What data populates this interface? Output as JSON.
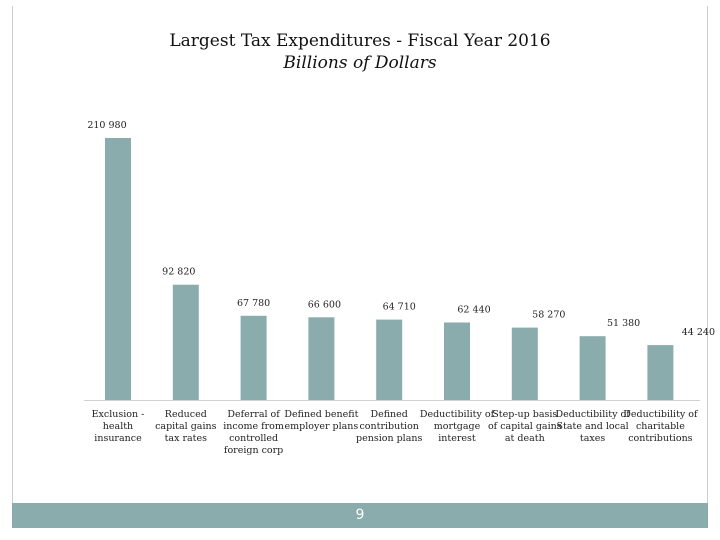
{
  "slide": {
    "page_number": "9",
    "bar_color": "#8aacad"
  },
  "chart_data": {
    "type": "bar",
    "title": "Largest Tax Expenditures - Fiscal Year 2016",
    "subtitle": "Billions of Dollars",
    "xlabel": "",
    "ylabel": "",
    "ylim": [
      0,
      210980
    ],
    "grid": false,
    "categories": [
      [
        "Exclusion -",
        "health",
        "insurance"
      ],
      [
        "Reduced",
        "capital gains",
        "tax rates"
      ],
      [
        "Deferral of",
        "income from",
        "controlled",
        "foreign corp"
      ],
      [
        "Defined benefit",
        "employer plans"
      ],
      [
        "Defined",
        "contribution",
        "pension plans"
      ],
      [
        "Deductibility of",
        "mortgage",
        "interest"
      ],
      [
        "Step-up basis",
        "of capital gains",
        "at death"
      ],
      [
        "Deductibility of",
        "State and local",
        "taxes"
      ],
      [
        "Deductibility of",
        "charitable",
        "contributions"
      ]
    ],
    "values": [
      210980,
      92820,
      67780,
      66600,
      64710,
      62440,
      58270,
      51380,
      44240
    ],
    "value_labels": [
      "210 980",
      "92 820",
      "67 780",
      "66 600",
      "64 710",
      "62 440",
      "58 270",
      "51 380",
      "44 240"
    ]
  }
}
